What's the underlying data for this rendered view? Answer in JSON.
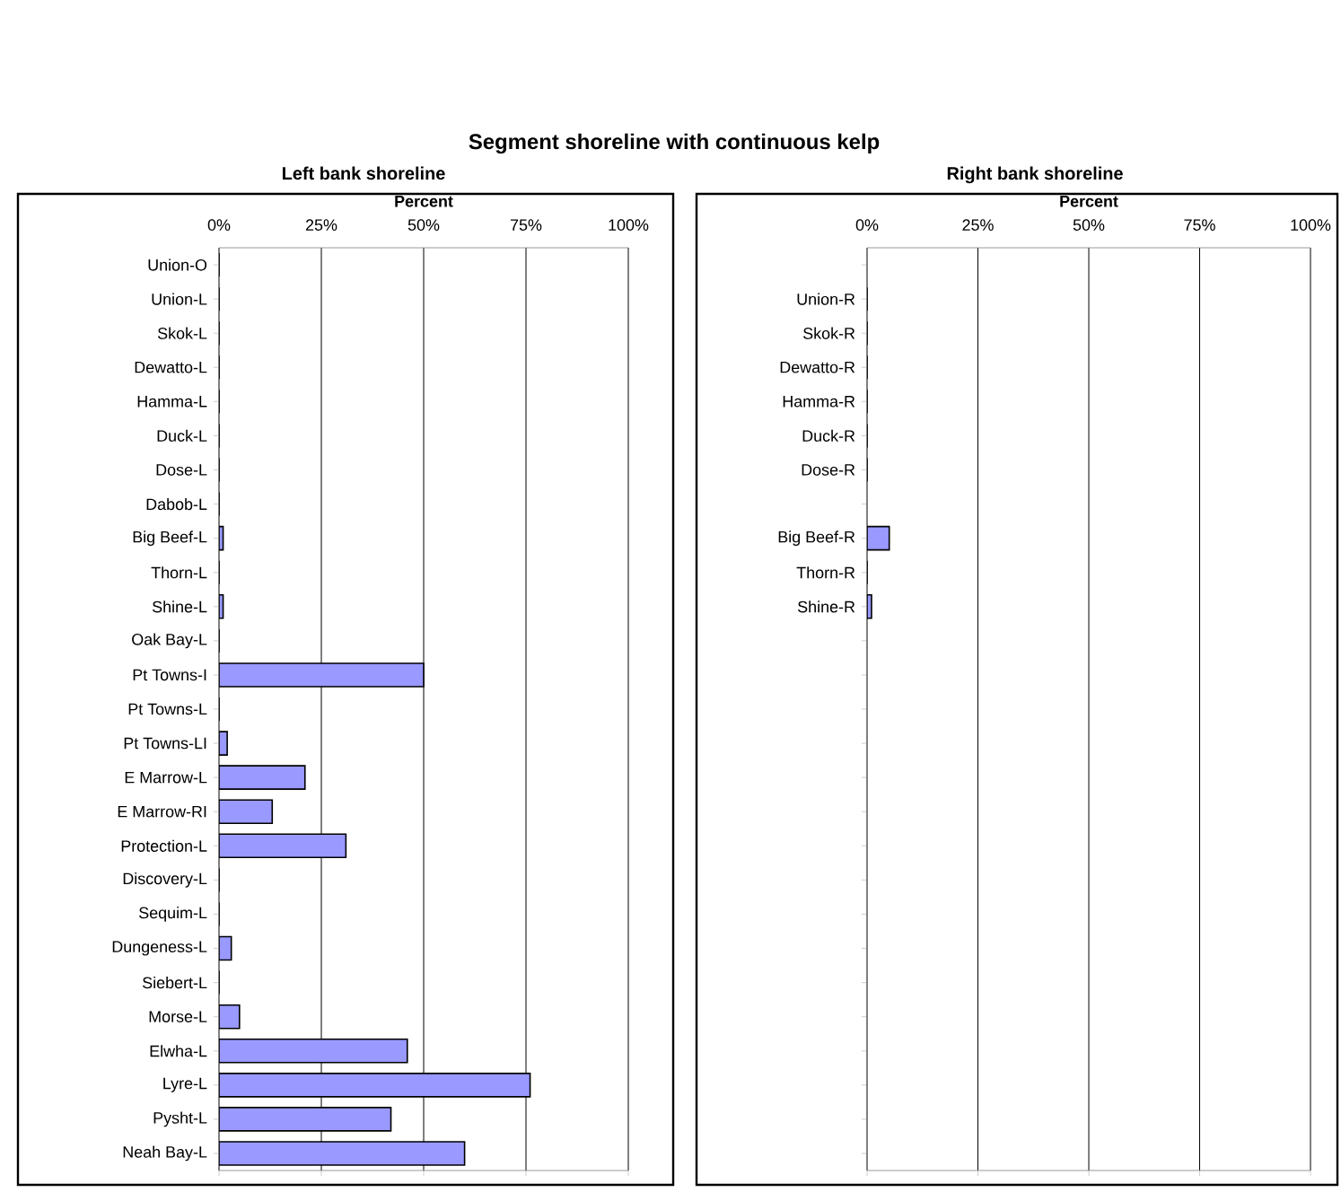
{
  "chart_data": [
    {
      "type": "bar",
      "orientation": "horizontal",
      "title": "Segment shoreline with continuous kelp",
      "subtitle": "Left bank shoreline",
      "xlabel": "Percent",
      "categories": [
        "Union-O",
        "Union-L",
        "Skok-L",
        "Dewatto-L",
        "Hamma-L",
        "Duck-L",
        "Dose-L",
        "Dabob-L",
        "Big Beef-L",
        "Thorn-L",
        "Shine-L",
        "Oak Bay-L",
        "Pt Towns-I",
        "Pt Towns-L",
        "Pt Towns-LI",
        "E Marrow-L",
        "E Marrow-RI",
        "Protection-L",
        "Discovery-L",
        "Sequim-L",
        "Dungeness-L",
        "Siebert-L",
        "Morse-L",
        "Elwha-L",
        "Lyre-L",
        "Pysht-L",
        "Neah Bay-L"
      ],
      "values": [
        0,
        0,
        0,
        0,
        0,
        0,
        0,
        0,
        1,
        0,
        1,
        0,
        50,
        0,
        2,
        21,
        13,
        31,
        0,
        0,
        3,
        0,
        5,
        46,
        76,
        42,
        60
      ],
      "color": "#9999ff",
      "xlim": [
        0,
        100
      ],
      "xticks": [
        {
          "value": 0,
          "label": "0%"
        },
        {
          "value": 25,
          "label": "25%"
        },
        {
          "value": 50,
          "label": "50%"
        },
        {
          "value": 75,
          "label": "75%"
        },
        {
          "value": 100,
          "label": "100%"
        }
      ],
      "grid": "x"
    },
    {
      "type": "bar",
      "orientation": "horizontal",
      "subtitle": "Right bank shoreline",
      "xlabel": "Percent",
      "categories": [
        null,
        "Union-R",
        "Skok-R",
        "Dewatto-R",
        "Hamma-R",
        "Duck-R",
        "Dose-R",
        null,
        "Big Beef-R",
        "Thorn-R",
        "Shine-R",
        null,
        null,
        null,
        null,
        null,
        null,
        null,
        null,
        null,
        null,
        null,
        null,
        null,
        null,
        null,
        null
      ],
      "values": [
        null,
        0,
        0,
        0,
        0,
        0,
        0,
        null,
        5,
        0,
        1,
        null,
        null,
        null,
        null,
        null,
        null,
        null,
        null,
        null,
        null,
        null,
        null,
        null,
        null,
        null,
        null
      ],
      "color": "#9999ff",
      "xlim": [
        0,
        100
      ],
      "xticks": [
        {
          "value": 0,
          "label": "0%"
        },
        {
          "value": 25,
          "label": "25%"
        },
        {
          "value": 50,
          "label": "50%"
        },
        {
          "value": 75,
          "label": "75%"
        },
        {
          "value": 100,
          "label": "100%"
        }
      ],
      "grid": "x"
    }
  ]
}
